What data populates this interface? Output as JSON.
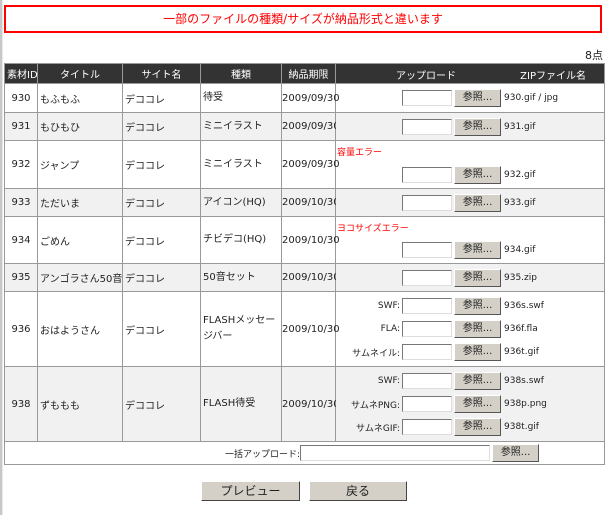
{
  "alert": "一部のファイルの種類/サイズが納品形式と違います",
  "count": "8点",
  "headers": [
    "素材ID",
    "タイトル",
    "サイト名",
    "種類",
    "納品期限",
    "アップロード",
    "ZIPファイル名"
  ],
  "browse_label": "参照...",
  "rows": [
    {
      "id": "930",
      "title": "もふもふ",
      "site": "デココレ",
      "type": "待受",
      "deadline": "2009/09/30",
      "error": "",
      "uploads": [
        {
          "label": "",
          "file": "930.gif / jpg"
        }
      ]
    },
    {
      "id": "931",
      "title": "もひもひ",
      "site": "デココレ",
      "type": "ミニイラスト",
      "deadline": "2009/09/30",
      "error": "",
      "uploads": [
        {
          "label": "",
          "file": "931.gif"
        }
      ]
    },
    {
      "id": "932",
      "title": "ジャンプ",
      "site": "デココレ",
      "type": "ミニイラスト",
      "deadline": "2009/09/30",
      "error": "容量エラー",
      "uploads": [
        {
          "label": "",
          "file": "932.gif"
        }
      ]
    },
    {
      "id": "933",
      "title": "ただいま",
      "site": "デココレ",
      "type": "アイコン(HQ)",
      "deadline": "2009/10/30",
      "error": "",
      "uploads": [
        {
          "label": "",
          "file": "933.gif"
        }
      ]
    },
    {
      "id": "934",
      "title": "ごめん",
      "site": "デココレ",
      "type": "チビデコ(HQ)",
      "deadline": "2009/10/30",
      "error": "ヨコサイズエラー",
      "uploads": [
        {
          "label": "",
          "file": "934.gif"
        }
      ]
    },
    {
      "id": "935",
      "title": "アンゴラさん50音",
      "site": "デココレ",
      "type": "50音セット",
      "deadline": "2009/10/30",
      "error": "",
      "uploads": [
        {
          "label": "",
          "file": "935.zip"
        }
      ]
    },
    {
      "id": "936",
      "title": "おはようさん",
      "site": "デココレ",
      "type": "FLASHメッセージバー",
      "deadline": "2009/10/30",
      "error": "",
      "uploads": [
        {
          "label": "SWF:",
          "file": "936s.swf"
        },
        {
          "label": "FLA:",
          "file": "936f.fla"
        },
        {
          "label": "サムネイル:",
          "file": "936t.gif"
        }
      ]
    },
    {
      "id": "938",
      "title": "ずももも",
      "site": "デココレ",
      "type": "FLASH待受",
      "deadline": "2009/10/30",
      "error": "",
      "uploads": [
        {
          "label": "SWF:",
          "file": "938s.swf"
        },
        {
          "label": "サムネPNG:",
          "file": "938p.png"
        },
        {
          "label": "サムネGIF:",
          "file": "938t.gif"
        }
      ]
    }
  ],
  "bulk_label": "一括アップロード:",
  "preview_button": "プレビュー",
  "back_button": "戻る"
}
